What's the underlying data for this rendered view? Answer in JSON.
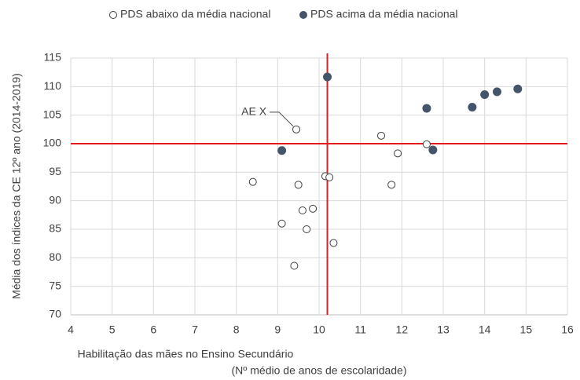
{
  "chart_data": {
    "type": "scatter",
    "x_label": [
      "Habilitação das mães no Ensino Secundário",
      "(Nº médio de anos de escolaridade)"
    ],
    "y_label": "Média dos índices da CE 12º ano (2014-2019)",
    "xlim": [
      4,
      16
    ],
    "xticks": [
      4,
      5,
      6,
      7,
      8,
      9,
      10,
      11,
      12,
      13,
      14,
      15,
      16
    ],
    "ylim": [
      70,
      115
    ],
    "yticks": [
      70,
      75,
      80,
      85,
      90,
      95,
      100,
      105,
      110,
      115
    ],
    "grid": true,
    "legend": "top",
    "reference_lines": {
      "x": 10.2,
      "y": 100,
      "color": "#e41a1c"
    },
    "series": [
      {
        "name": "PDS abaixo da média nacional",
        "marker": "open",
        "color": "#404040",
        "x": [
          9.45,
          11.5,
          12.6,
          11.9,
          10.15,
          10.25,
          8.4,
          9.5,
          11.75,
          9.6,
          9.85,
          9.1,
          9.7,
          10.35,
          9.4
        ],
        "y": [
          102.5,
          101.4,
          99.9,
          98.3,
          94.3,
          94.1,
          93.3,
          92.8,
          92.8,
          88.3,
          88.6,
          86.0,
          85.0,
          82.6,
          78.6
        ]
      },
      {
        "name": "PDS acima da média nacional",
        "marker": "filled",
        "color": "#44546a",
        "x": [
          10.2,
          12.6,
          13.7,
          14.0,
          14.3,
          14.8,
          9.1,
          12.75
        ],
        "y": [
          111.7,
          106.2,
          106.4,
          108.6,
          109.1,
          109.6,
          98.8,
          98.9
        ]
      }
    ],
    "annotations": [
      {
        "text": "AE X",
        "x": 9.45,
        "y": 102.5
      }
    ]
  }
}
